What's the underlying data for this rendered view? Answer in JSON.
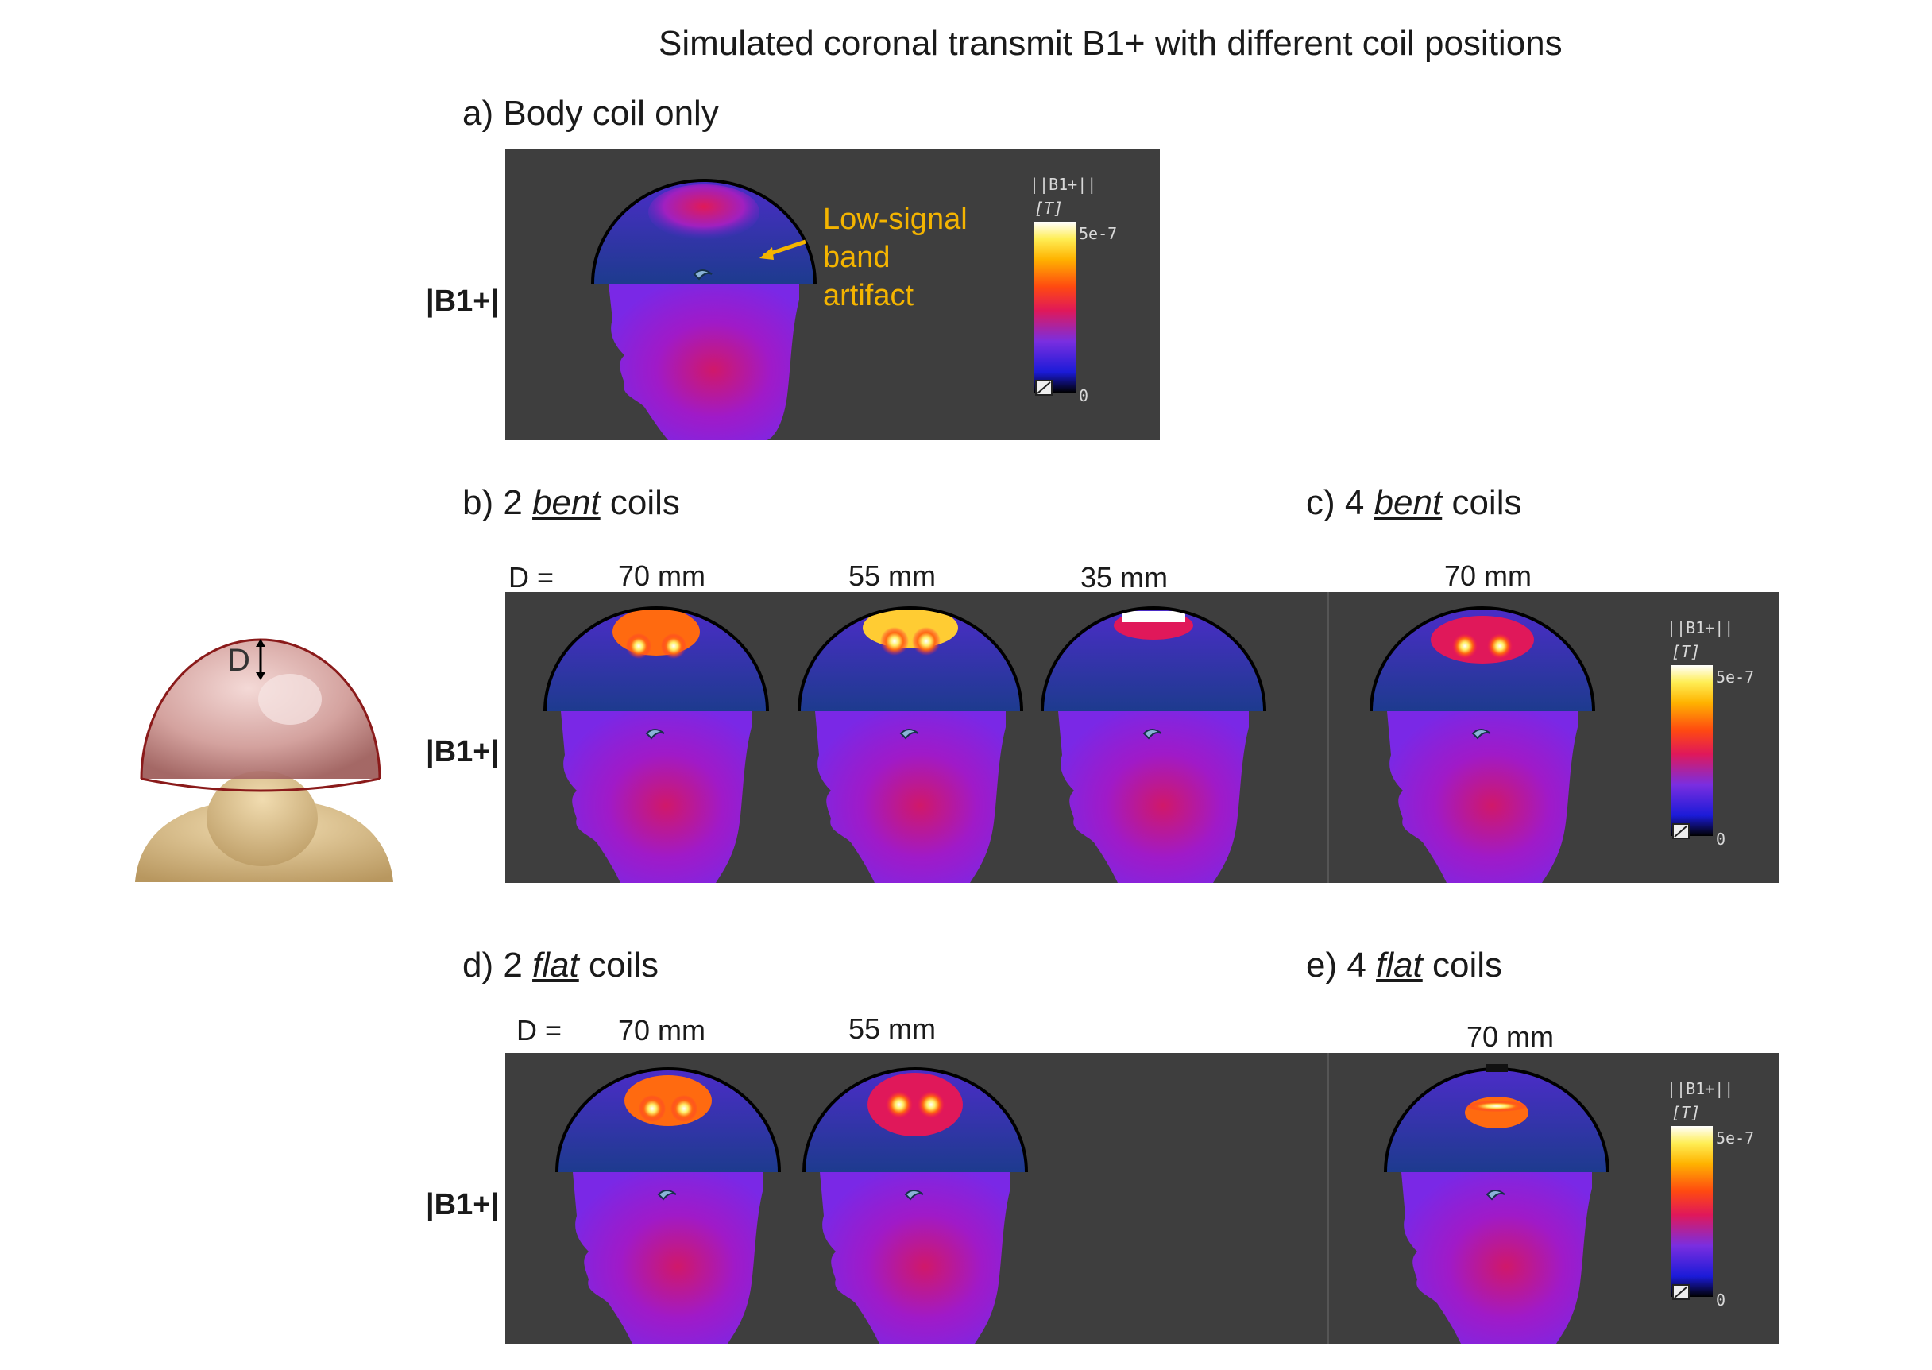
{
  "title": "Simulated coronal transmit B1+ with different coil positions",
  "panels": {
    "a": {
      "prefix": "a) Body coil only",
      "label_before": "",
      "label_word": "",
      "label_after": ""
    },
    "b": {
      "prefix": "b) 2 ",
      "label_word": "bent",
      "label_after": " coils"
    },
    "c": {
      "prefix": "c) 4 ",
      "label_word": "bent",
      "label_after": " coils"
    },
    "d": {
      "prefix": "d) 2 ",
      "label_word": "flat",
      "label_after": " coils"
    },
    "e": {
      "prefix": "e) 4 ",
      "label_word": "flat",
      "label_after": " coils"
    }
  },
  "row_label": "|B1+|",
  "d_equals": "D =",
  "distances": {
    "b": [
      "70 mm",
      "55 mm",
      "35 mm"
    ],
    "c": [
      "70 mm"
    ],
    "d": [
      "70 mm",
      "55 mm"
    ],
    "e": [
      "70 mm"
    ]
  },
  "annotation": [
    "Low-signal",
    "band",
    "artifact"
  ],
  "colorbar": {
    "title": "||B1+||",
    "unit": "[T]",
    "max": "5e-7",
    "min": "0"
  },
  "model_label": "D",
  "colors": {
    "panel_bg": "#3e3e3e",
    "annotation": "#f4b400",
    "helmet": "#c98a86",
    "body": "#d8b98a"
  }
}
